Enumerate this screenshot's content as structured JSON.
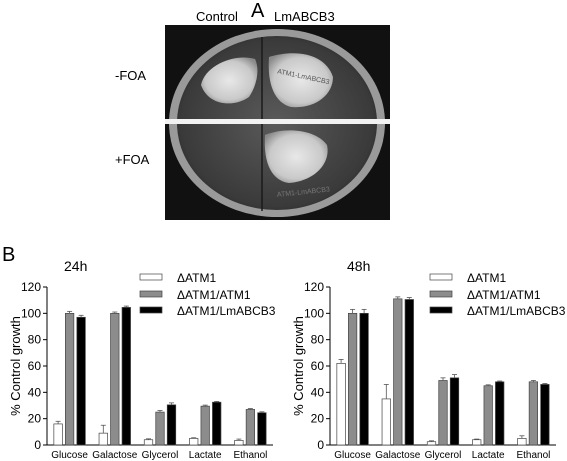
{
  "panel_a": {
    "letter": "A",
    "col_labels": [
      "Control",
      "LmABCB3"
    ],
    "row_labels": [
      "-FOA",
      "+FOA"
    ],
    "plate_text": [
      "ATM1-LmABCB3",
      "ATM1-LmABCB3"
    ]
  },
  "panel_b": {
    "letter": "B"
  },
  "chart_data": [
    {
      "type": "bar",
      "title": "24h",
      "ylabel": "% Control growth",
      "xlabel": "",
      "ylim": [
        0,
        120
      ],
      "yticks": [
        0,
        20,
        40,
        60,
        80,
        100,
        120
      ],
      "categories": [
        "Glucose",
        "Galactose",
        "Glycerol",
        "Lactate",
        "Ethanol"
      ],
      "legend_position": "top-right",
      "series": [
        {
          "name": "ΔATM1",
          "color": "#ffffff",
          "values": [
            16,
            9,
            4,
            5,
            3.5
          ],
          "errors": [
            2,
            6,
            0.7,
            0.5,
            1
          ]
        },
        {
          "name": "ΔATM1/ATM1",
          "color": "#8c8c8c",
          "values": [
            100,
            100,
            25,
            29.5,
            27
          ],
          "errors": [
            1.5,
            1,
            1.2,
            0.8,
            0.7
          ]
        },
        {
          "name": "ΔATM1/LmABCB3",
          "color": "#000000",
          "values": [
            97,
            104.5,
            30.5,
            32.5,
            24.5
          ],
          "errors": [
            1.5,
            1,
            1.5,
            0.6,
            0.7
          ]
        }
      ]
    },
    {
      "type": "bar",
      "title": "48h",
      "ylabel": "% Control growth",
      "xlabel": "",
      "ylim": [
        0,
        120
      ],
      "yticks": [
        0,
        20,
        40,
        60,
        80,
        100,
        120
      ],
      "categories": [
        "Glucose",
        "Galactose",
        "Glycerol",
        "Lactate",
        "Ethanol"
      ],
      "legend_position": "top-right",
      "series": [
        {
          "name": "ΔATM1",
          "color": "#ffffff",
          "values": [
            62,
            35,
            2.5,
            4,
            5
          ],
          "errors": [
            3,
            11,
            0.7,
            0.5,
            2
          ]
        },
        {
          "name": "ΔATM1/ATM1",
          "color": "#8c8c8c",
          "values": [
            100,
            111,
            49,
            45,
            48
          ],
          "errors": [
            3,
            1.5,
            2,
            0.7,
            1
          ]
        },
        {
          "name": "ΔATM1/LmABCB3",
          "color": "#000000",
          "values": [
            100,
            110.5,
            51,
            48,
            46
          ],
          "errors": [
            3,
            1.5,
            2.5,
            0.6,
            0.7
          ]
        }
      ]
    }
  ]
}
